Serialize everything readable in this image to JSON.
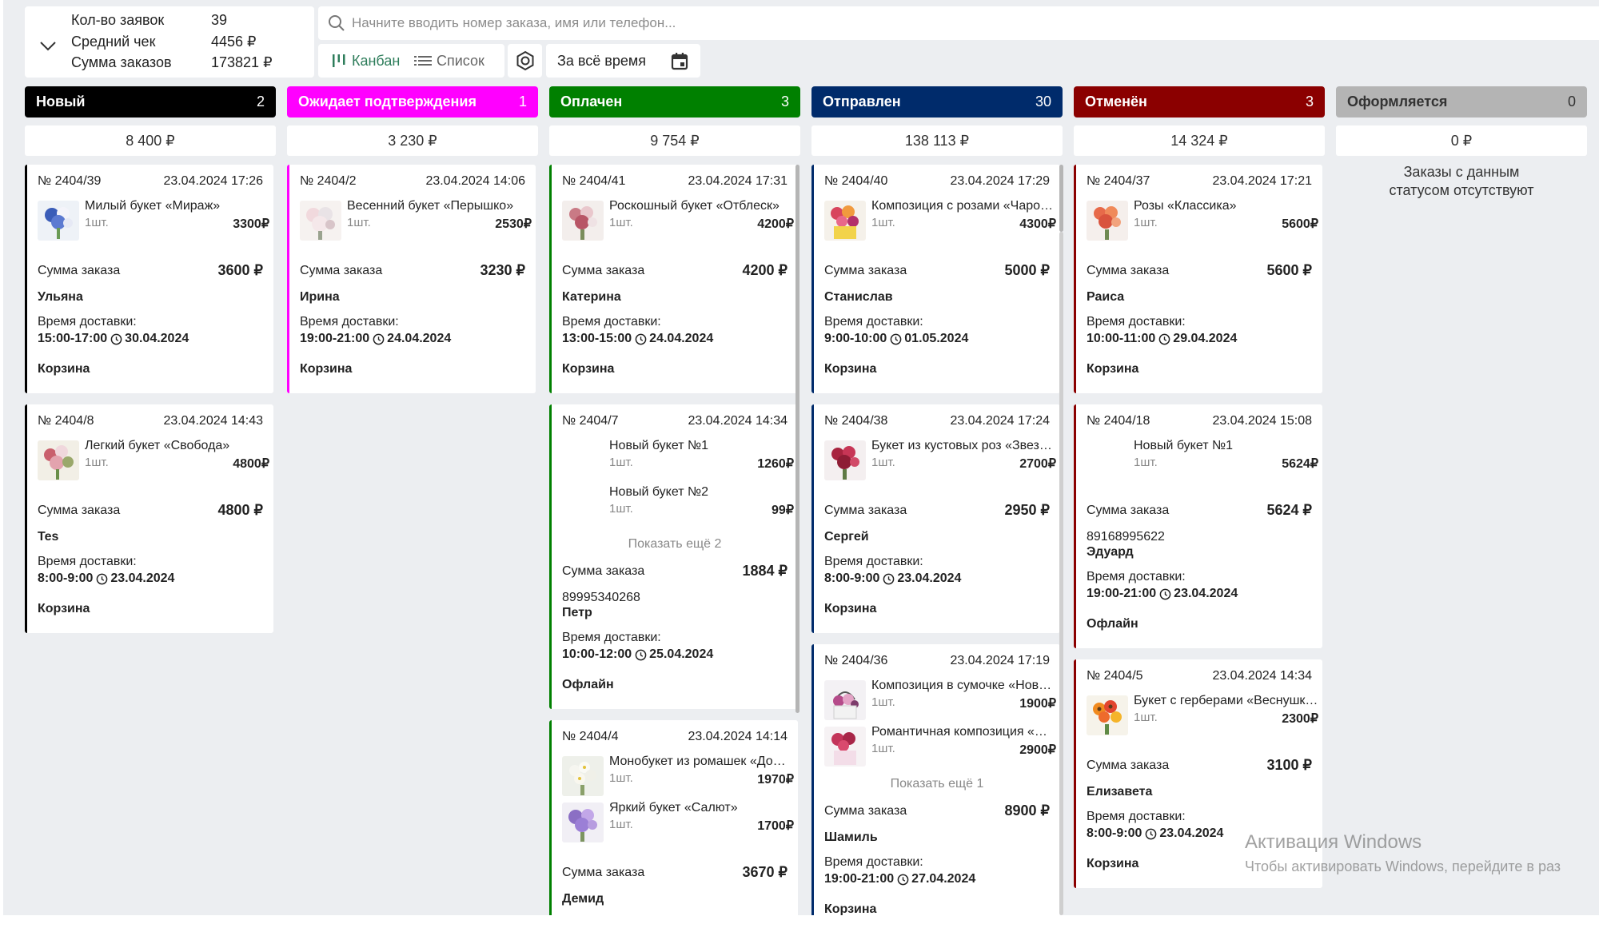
{
  "stats": {
    "count_label": "Кол-во заявок",
    "count_value": "39",
    "avg_label": "Средний чек",
    "avg_value": "4456 ₽",
    "sum_label": "Сумма заказов",
    "sum_value": "173821 ₽"
  },
  "search": {
    "placeholder": "Начните вводить номер заказа, имя или телефон..."
  },
  "toolbar": {
    "kanban_label": "Канбан",
    "list_label": "Список",
    "period_label": "За всё время"
  },
  "colors": {
    "new": "#000000",
    "pending": "#ff00ff",
    "paid": "#008000",
    "sent": "#002b6b",
    "cancelled": "#8b0000",
    "draft": "#b4b4b4"
  },
  "columns": [
    {
      "title": "Новый",
      "count": "2",
      "total": "8 400 ₽"
    },
    {
      "title": "Ожидает подтверждения",
      "count": "1",
      "total": "3 230 ₽"
    },
    {
      "title": "Оплачен",
      "count": "3",
      "total": "9 754 ₽"
    },
    {
      "title": "Отправлен",
      "count": "30",
      "total": "138 113 ₽"
    },
    {
      "title": "Отменён",
      "count": "3",
      "total": "14 324 ₽"
    },
    {
      "title": "Оформляется",
      "count": "0",
      "total": "0 ₽",
      "empty_line1": "Заказы с данным",
      "empty_line2": "статусом отсутствуют"
    }
  ],
  "labels": {
    "sum": "Сумма заказа",
    "delivery": "Время доставки:",
    "qty": "1шт."
  },
  "cards": {
    "c39": {
      "num": "№ 2404/39",
      "date": "23.04.2024 17:26",
      "items": [
        {
          "name": "Милый букет «Мираж»",
          "price": "3300₽"
        }
      ],
      "sum": "3600 ₽",
      "customer": "Ульяна",
      "time": "15:00-17:00",
      "ddate": "30.04.2024",
      "channel": "Корзина"
    },
    "c8": {
      "num": "№ 2404/8",
      "date": "23.04.2024 14:43",
      "items": [
        {
          "name": "Легкий букет «Свобода»",
          "price": "4800₽"
        }
      ],
      "sum": "4800 ₽",
      "customer": "Tes",
      "time": "8:00-9:00",
      "ddate": "23.04.2024",
      "channel": "Корзина"
    },
    "c2": {
      "num": "№ 2404/2",
      "date": "23.04.2024 14:06",
      "items": [
        {
          "name": "Весенний букет «Перышко»",
          "price": "2530₽"
        }
      ],
      "sum": "3230 ₽",
      "customer": "Ирина",
      "time": "19:00-21:00",
      "ddate": "24.04.2024",
      "channel": "Корзина"
    },
    "c41": {
      "num": "№ 2404/41",
      "date": "23.04.2024 17:31",
      "items": [
        {
          "name": "Роскошный букет «Отблеск»",
          "price": "4200₽"
        }
      ],
      "sum": "4200 ₽",
      "customer": "Катерина",
      "time": "13:00-15:00",
      "ddate": "24.04.2024",
      "channel": "Корзина"
    },
    "c7": {
      "num": "№ 2404/7",
      "date": "23.04.2024 14:34",
      "items": [
        {
          "name": "Новый букет №1",
          "price": "1260₽"
        },
        {
          "name": "Новый букет №2",
          "price": "99₽"
        }
      ],
      "more": "Показать ещё 2",
      "sum": "1884 ₽",
      "phone": "89995340268",
      "customer": "Петр",
      "time": "10:00-12:00",
      "ddate": "25.04.2024",
      "channel": "Офлайн"
    },
    "c4": {
      "num": "№ 2404/4",
      "date": "23.04.2024 14:14",
      "items": [
        {
          "name": "Монобукет из ромашек «До…",
          "price": "1970₽"
        },
        {
          "name": "Яркий букет «Салют»",
          "price": "1700₽"
        }
      ],
      "sum": "3670 ₽",
      "customer": "Демид"
    },
    "c40": {
      "num": "№ 2404/40",
      "date": "23.04.2024 17:29",
      "items": [
        {
          "name": "Композиция с розами «Чаро…",
          "price": "4300₽"
        }
      ],
      "sum": "5000 ₽",
      "customer": "Станислав",
      "time": "9:00-10:00",
      "ddate": "01.05.2024",
      "channel": "Корзина"
    },
    "c38": {
      "num": "№ 2404/38",
      "date": "23.04.2024 17:24",
      "items": [
        {
          "name": "Букет из кустовых роз «Звез…",
          "price": "2700₽"
        }
      ],
      "sum": "2950 ₽",
      "customer": "Сергей",
      "time": "8:00-9:00",
      "ddate": "23.04.2024",
      "channel": "Корзина"
    },
    "c36": {
      "num": "№ 2404/36",
      "date": "23.04.2024 17:19",
      "items": [
        {
          "name": "Композиция в сумочке «Нов…",
          "price": "1900₽"
        },
        {
          "name": "Романтичная композиция «…",
          "price": "2900₽"
        }
      ],
      "more": "Показать ещё 1",
      "sum": "8900 ₽",
      "customer": "Шамиль",
      "time": "19:00-21:00",
      "ddate": "27.04.2024",
      "channel": "Корзина"
    },
    "c37": {
      "num": "№ 2404/37",
      "date": "23.04.2024 17:21",
      "items": [
        {
          "name": "Розы «Классика»",
          "price": "5600₽"
        }
      ],
      "sum": "5600 ₽",
      "customer": "Раиса",
      "time": "10:00-11:00",
      "ddate": "29.04.2024",
      "channel": "Корзина"
    },
    "c18": {
      "num": "№ 2404/18",
      "date": "23.04.2024 15:08",
      "items": [
        {
          "name": "Новый букет №1",
          "price": "5624₽"
        }
      ],
      "sum": "5624 ₽",
      "phone": "89168995622",
      "customer": "Эдуард",
      "time": "19:00-21:00",
      "ddate": "23.04.2024",
      "channel": "Офлайн"
    },
    "c5": {
      "num": "№ 2404/5",
      "date": "23.04.2024 14:34",
      "items": [
        {
          "name": "Букет с герберами «Веснушк…",
          "price": "2300₽"
        }
      ],
      "sum": "3100 ₽",
      "customer": "Елизавета",
      "time": "8:00-9:00",
      "ddate": "23.04.2024",
      "channel": "Корзина"
    }
  },
  "watermark": {
    "title": "Активация Windows",
    "subtitle": "Чтобы активировать Windows, перейдите в раз"
  }
}
